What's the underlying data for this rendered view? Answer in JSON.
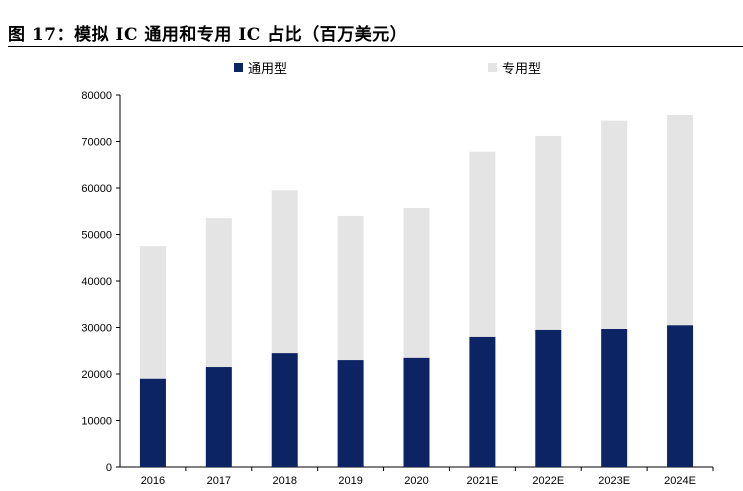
{
  "figure": {
    "title": "图 17：模拟 IC 通用和专用 IC 占比（百万美元）"
  },
  "colors": {
    "general": "#0d2464",
    "special": "#e4e4e4",
    "axis": "#000000"
  },
  "chart_data": {
    "type": "bar",
    "stacked": true,
    "title": "",
    "xlabel": "",
    "ylabel": "",
    "ylim": [
      0,
      80000
    ],
    "yticks": [
      0,
      10000,
      20000,
      30000,
      40000,
      50000,
      60000,
      70000,
      80000
    ],
    "grid": false,
    "legend_position": "top",
    "categories": [
      "2016",
      "2017",
      "2018",
      "2019",
      "2020",
      "2021E",
      "2022E",
      "2023E",
      "2024E"
    ],
    "series": [
      {
        "name": "通用型",
        "values": [
          19000,
          21500,
          24500,
          23000,
          23500,
          28000,
          29500,
          29700,
          30500
        ]
      },
      {
        "name": "专用型",
        "values": [
          28500,
          32000,
          35000,
          31000,
          32200,
          39800,
          41700,
          44800,
          45200
        ]
      }
    ]
  }
}
